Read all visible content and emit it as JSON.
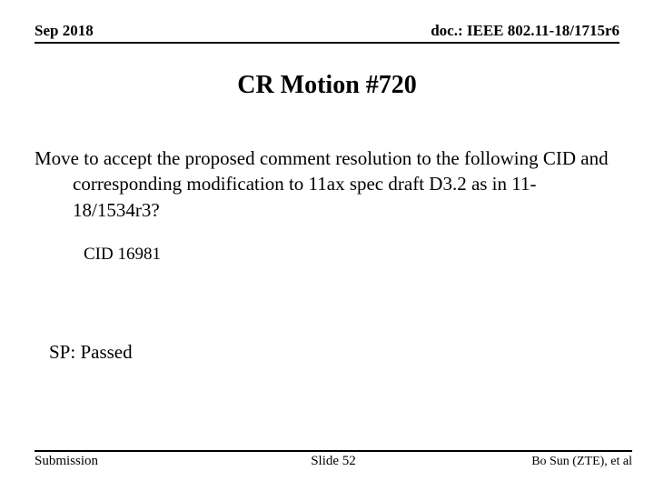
{
  "header": {
    "left": "Sep 2018",
    "right": "doc.: IEEE 802.11-18/1715r6"
  },
  "title": "CR Motion #720",
  "motion": {
    "text": "Move to accept the proposed comment resolution to the following CID and corresponding modification to 11ax spec draft D3.2 as in 11-18/1534r3?",
    "cid": "CID 16981"
  },
  "sp": "SP: Passed",
  "footer": {
    "left": "Submission",
    "center": "Slide 52",
    "right": "Bo Sun (ZTE), et al"
  },
  "style": {
    "background": "#ffffff",
    "text_color": "#000000",
    "rule_color": "#000000",
    "font_family": "Times New Roman",
    "title_fontsize": 28,
    "body_fontsize": 21,
    "header_fontsize": 17,
    "footer_fontsize": 15
  }
}
